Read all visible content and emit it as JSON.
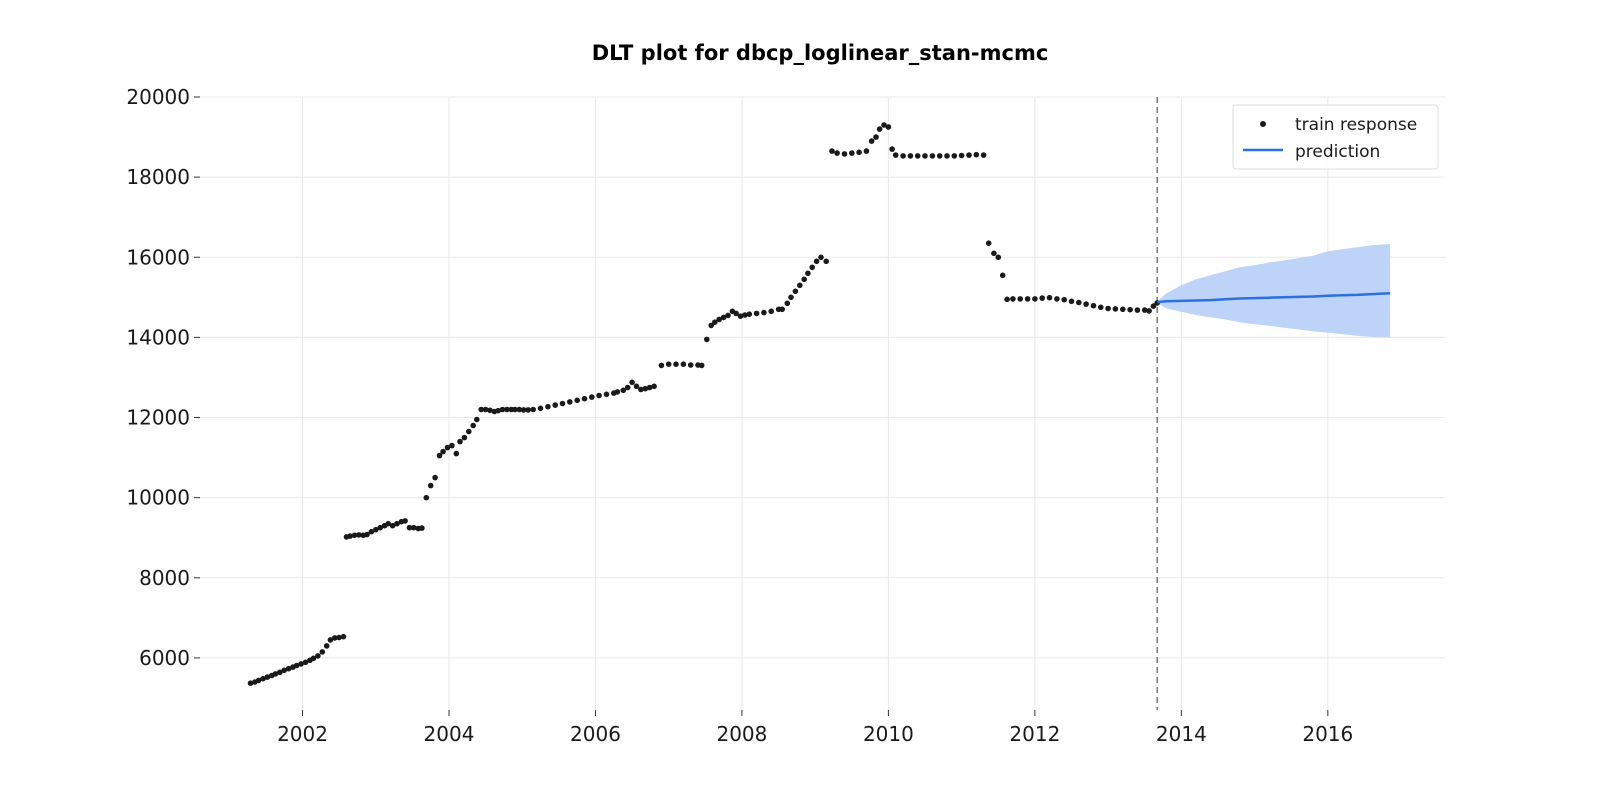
{
  "chart_data": {
    "type": "line",
    "title": "DLT plot for dbcp_loglinear_stan-mcmc",
    "xlabel": "",
    "ylabel": "",
    "xlim": [
      2000.6,
      2017.6
    ],
    "ylim": [
      4700,
      20000
    ],
    "x_ticks": [
      2002,
      2004,
      2006,
      2008,
      2010,
      2012,
      2014,
      2016
    ],
    "y_ticks": [
      6000,
      8000,
      10000,
      12000,
      14000,
      16000,
      18000,
      20000
    ],
    "grid": true,
    "legend_position": "top-right",
    "train_end": 2013.67,
    "colors": {
      "train": "#1a1a1a",
      "prediction": "#2b6fe0",
      "band": "#bdd3f8",
      "grid": "#e8e8e8",
      "vline": "#777777"
    },
    "series": [
      {
        "name": "train response",
        "kind": "scatter",
        "x": [
          2001.29,
          2001.35,
          2001.4,
          2001.46,
          2001.52,
          2001.58,
          2001.63,
          2001.69,
          2001.75,
          2001.81,
          2001.87,
          2001.92,
          2001.98,
          2002.04,
          2002.1,
          2002.15,
          2002.21,
          2002.27,
          2002.33,
          2002.38,
          2002.44,
          2002.5,
          2002.56,
          2002.6,
          2002.65,
          2002.71,
          2002.77,
          2002.83,
          2002.88,
          2002.94,
          2003.0,
          2003.06,
          2003.12,
          2003.17,
          2003.23,
          2003.29,
          2003.35,
          2003.4,
          2003.46,
          2003.52,
          2003.58,
          2003.63,
          2003.69,
          2003.75,
          2003.81,
          2003.87,
          2003.92,
          2003.98,
          2004.04,
          2004.1,
          2004.15,
          2004.21,
          2004.27,
          2004.33,
          2004.38,
          2004.44,
          2004.5,
          2004.56,
          2004.62,
          2004.67,
          2004.73,
          2004.79,
          2004.85,
          2004.9,
          2004.96,
          2005.02,
          2005.08,
          2005.15,
          2005.25,
          2005.35,
          2005.45,
          2005.55,
          2005.65,
          2005.75,
          2005.85,
          2005.95,
          2006.05,
          2006.15,
          2006.25,
          2006.3,
          2006.38,
          2006.44,
          2006.5,
          2006.56,
          2006.62,
          2006.68,
          2006.74,
          2006.8,
          2006.9,
          2007.0,
          2007.1,
          2007.2,
          2007.3,
          2007.4,
          2007.45,
          2007.52,
          2007.58,
          2007.63,
          2007.69,
          2007.75,
          2007.81,
          2007.87,
          2007.92,
          2007.98,
          2008.04,
          2008.1,
          2008.2,
          2008.3,
          2008.4,
          2008.5,
          2008.55,
          2008.62,
          2008.67,
          2008.73,
          2008.79,
          2008.85,
          2008.9,
          2008.96,
          2009.02,
          2009.08,
          2009.15,
          2009.23,
          2009.3,
          2009.4,
          2009.5,
          2009.6,
          2009.7,
          2009.77,
          2009.83,
          2009.88,
          2009.94,
          2010.0,
          2010.05,
          2010.1,
          2010.2,
          2010.3,
          2010.4,
          2010.5,
          2010.6,
          2010.7,
          2010.8,
          2010.9,
          2011.0,
          2011.1,
          2011.2,
          2011.3,
          2011.37,
          2011.44,
          2011.5,
          2011.56,
          2011.62,
          2011.7,
          2011.8,
          2011.9,
          2012.0,
          2012.1,
          2012.2,
          2012.3,
          2012.4,
          2012.5,
          2012.6,
          2012.7,
          2012.8,
          2012.9,
          2013.0,
          2013.1,
          2013.2,
          2013.3,
          2013.4,
          2013.5,
          2013.56,
          2013.62,
          2013.67
        ],
        "y": [
          5370,
          5400,
          5440,
          5480,
          5520,
          5560,
          5600,
          5640,
          5690,
          5730,
          5770,
          5810,
          5850,
          5890,
          5940,
          5990,
          6050,
          6150,
          6300,
          6450,
          6500,
          6510,
          6530,
          9020,
          9040,
          9060,
          9070,
          9060,
          9080,
          9150,
          9200,
          9250,
          9300,
          9350,
          9300,
          9350,
          9400,
          9420,
          9250,
          9250,
          9230,
          9240,
          10000,
          10300,
          10500,
          11050,
          11150,
          11250,
          11300,
          11100,
          11400,
          11500,
          11650,
          11800,
          11950,
          12200,
          12200,
          12180,
          12150,
          12170,
          12200,
          12200,
          12200,
          12200,
          12200,
          12190,
          12190,
          12200,
          12230,
          12270,
          12310,
          12350,
          12390,
          12430,
          12470,
          12510,
          12550,
          12580,
          12610,
          12640,
          12680,
          12750,
          12880,
          12780,
          12700,
          12720,
          12750,
          12780,
          13300,
          13330,
          13330,
          13330,
          13310,
          13310,
          13300,
          13950,
          14300,
          14380,
          14450,
          14500,
          14550,
          14650,
          14600,
          14530,
          14560,
          14580,
          14600,
          14620,
          14650,
          14700,
          14700,
          14850,
          15000,
          15150,
          15300,
          15450,
          15600,
          15750,
          15900,
          16000,
          15900,
          18650,
          18600,
          18580,
          18600,
          18620,
          18650,
          18900,
          19000,
          19200,
          19300,
          19250,
          18700,
          18550,
          18530,
          18530,
          18530,
          18530,
          18530,
          18530,
          18530,
          18530,
          18540,
          18550,
          18560,
          18550,
          16350,
          16100,
          16000,
          15550,
          14950,
          14960,
          14960,
          14960,
          14960,
          14980,
          14990,
          14960,
          14940,
          14900,
          14870,
          14830,
          14790,
          14750,
          14720,
          14710,
          14700,
          14690,
          14680,
          14680,
          14660,
          14780,
          14860
        ]
      },
      {
        "name": "prediction",
        "kind": "line",
        "x": [
          2013.67,
          2013.8,
          2014.0,
          2014.2,
          2014.4,
          2014.6,
          2014.8,
          2015.0,
          2015.2,
          2015.4,
          2015.6,
          2015.8,
          2016.0,
          2016.2,
          2016.4,
          2016.6,
          2016.85
        ],
        "y": [
          14880,
          14900,
          14910,
          14920,
          14930,
          14950,
          14970,
          14980,
          14990,
          15000,
          15010,
          15020,
          15040,
          15050,
          15060,
          15080,
          15100
        ],
        "upper": [
          14900,
          15100,
          15300,
          15450,
          15550,
          15650,
          15750,
          15800,
          15870,
          15920,
          15980,
          16040,
          16150,
          16200,
          16250,
          16300,
          16330
        ],
        "lower": [
          14860,
          14720,
          14640,
          14560,
          14500,
          14450,
          14380,
          14330,
          14290,
          14240,
          14200,
          14150,
          14120,
          14080,
          14040,
          14010,
          14000
        ]
      }
    ]
  }
}
